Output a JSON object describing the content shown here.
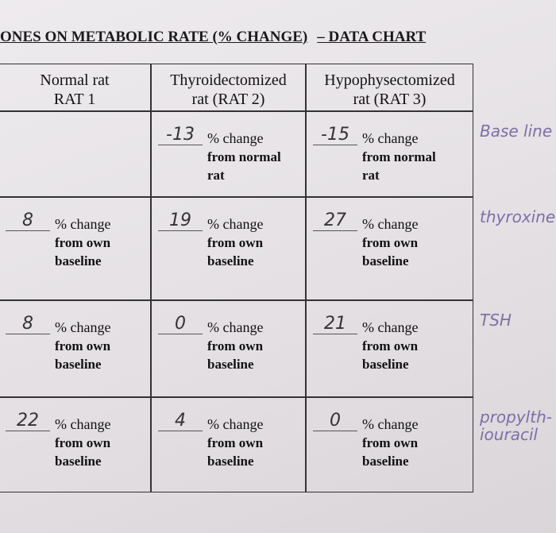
{
  "header": {
    "title": "ONES ON METABOLIC RATE (% CHANGE)",
    "subtitle": "– DATA CHART"
  },
  "table": {
    "columns": [
      [
        "Normal rat",
        "RAT 1"
      ],
      [
        "Thyroidectomized",
        "rat (RAT 2)"
      ],
      [
        "Hypophysectomized",
        "rat (RAT 3)"
      ]
    ],
    "rows": [
      {
        "note": "Base line",
        "cells": [
          null,
          {
            "entry": "-13",
            "text": [
              "% change",
              "from normal",
              "rat"
            ]
          },
          {
            "entry": "-15",
            "text": [
              "% change",
              "from normal",
              "rat"
            ]
          }
        ]
      },
      {
        "note": "thyroxine",
        "cells": [
          {
            "entry": "8",
            "text": [
              "% change",
              "from own",
              "baseline"
            ]
          },
          {
            "entry": "19",
            "text": [
              "% change",
              "from own",
              "baseline"
            ]
          },
          {
            "entry": "27",
            "text": [
              "% change",
              "from own",
              "baseline"
            ]
          }
        ]
      },
      {
        "note": "TSH",
        "cells": [
          {
            "entry": "8",
            "text": [
              "% change",
              "from own",
              "baseline"
            ]
          },
          {
            "entry": "0",
            "text": [
              "% change",
              "from own",
              "baseline"
            ]
          },
          {
            "entry": "21",
            "text": [
              "% change",
              "from own",
              "baseline"
            ]
          }
        ]
      },
      {
        "note": "propylth- iouracil",
        "cells": [
          {
            "entry": "22",
            "text": [
              "% change",
              "from own",
              "baseline"
            ]
          },
          {
            "entry": "4",
            "text": [
              "% change",
              "from own",
              "baseline"
            ]
          },
          {
            "entry": "0",
            "text": [
              "% change",
              "from own",
              "baseline"
            ]
          }
        ]
      }
    ]
  }
}
